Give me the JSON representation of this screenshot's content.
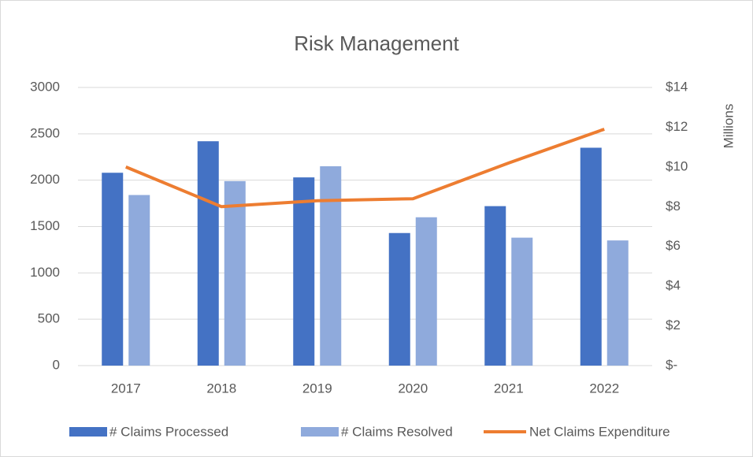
{
  "chart_data": {
    "type": "bar-line",
    "title": "Risk Management",
    "categories": [
      "2017",
      "2018",
      "2019",
      "2020",
      "2021",
      "2022"
    ],
    "series": [
      {
        "name": "# Claims Processed",
        "type": "bar",
        "color": "#4472c4",
        "values": [
          2080,
          2420,
          2030,
          1430,
          1720,
          2350
        ]
      },
      {
        "name": "# Claims Resolved",
        "type": "bar",
        "color": "#8faadc",
        "values": [
          1840,
          1990,
          2150,
          1600,
          1380,
          1350
        ]
      },
      {
        "name": "Net Claims Expenditure",
        "type": "line",
        "axis": "y2",
        "color": "#ed7d31",
        "values": [
          10,
          8.0,
          8.3,
          8.4,
          10.2,
          11.9
        ]
      }
    ],
    "ylim": [
      0,
      3000
    ],
    "yticks": [
      0,
      500,
      1000,
      1500,
      2000,
      2500,
      3000
    ],
    "y2lim": [
      0,
      14
    ],
    "y2ticks": [
      {
        "value": 0,
        "label": "$-"
      },
      {
        "value": 2,
        "label": "$2"
      },
      {
        "value": 4,
        "label": "$4"
      },
      {
        "value": 6,
        "label": "$6"
      },
      {
        "value": 8,
        "label": "$8"
      },
      {
        "value": 10,
        "label": "$10"
      },
      {
        "value": 12,
        "label": "$12"
      },
      {
        "value": 14,
        "label": "$14"
      }
    ],
    "y2label": "Millions",
    "grid": true,
    "legend": "bottom"
  }
}
